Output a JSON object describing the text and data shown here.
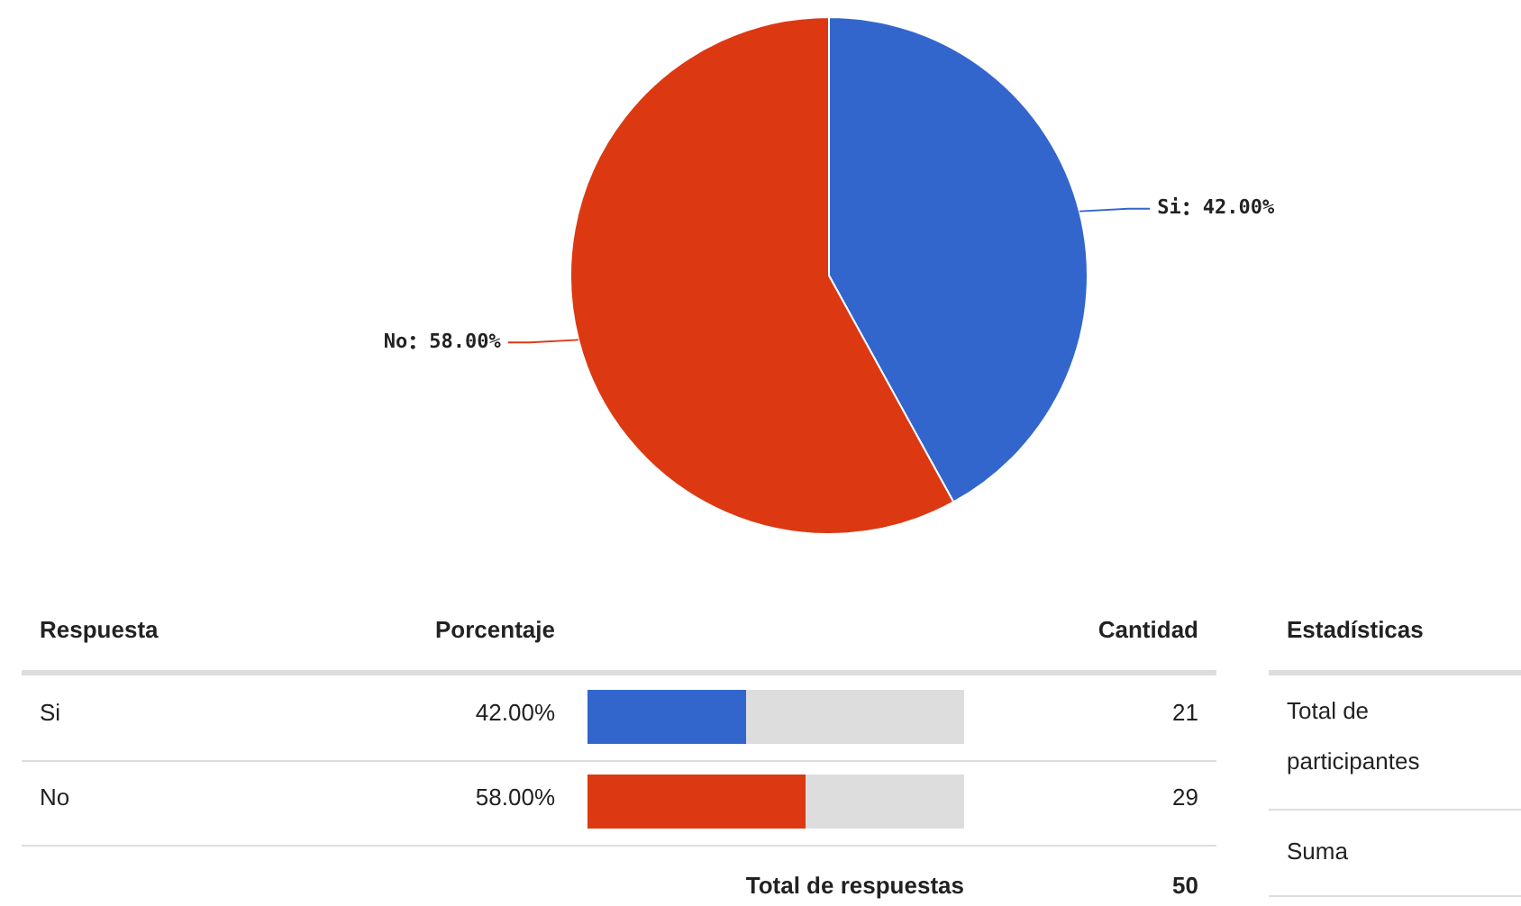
{
  "chart_data": {
    "type": "pie",
    "categories": [
      "Si",
      "No"
    ],
    "values": [
      42,
      58
    ],
    "colors": [
      "#3366cc",
      "#dc3912"
    ],
    "value_labels": [
      "42.00%",
      "58.00%"
    ],
    "annotations": [
      "Respuesta",
      "Porcentaje",
      "Cantidad",
      "Estadísticas",
      "Total de participantes",
      "Suma",
      "Total de respuestas",
      "Si",
      "42.00%",
      "21",
      "No",
      "58.00%",
      "29",
      "50"
    ]
  }
}
